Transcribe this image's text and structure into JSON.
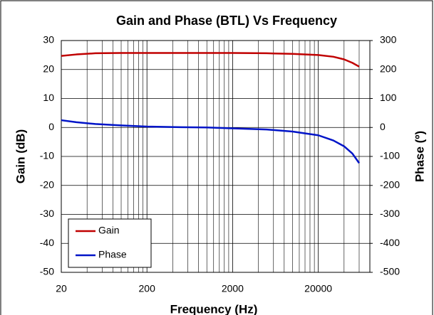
{
  "chart_data": {
    "type": "line",
    "title": "Gain and Phase (BTL) Vs Frequency",
    "x_label": "Frequency (Hz)",
    "y_label": "Gain (dB)",
    "y2_label": "Phase (º)",
    "x": [
      20,
      30,
      50,
      100,
      200,
      500,
      1000,
      2000,
      5000,
      10000,
      20000,
      30000,
      40000,
      50000,
      60000
    ],
    "series": [
      {
        "name": "Gain",
        "color": "#c00000",
        "values": [
          24.7,
          25.2,
          25.6,
          25.7,
          25.7,
          25.7,
          25.7,
          25.7,
          25.6,
          25.4,
          25.0,
          24.4,
          23.5,
          22.3,
          21.0
        ]
      },
      {
        "name": "Phase",
        "color": "#0014c8",
        "axis": "y2",
        "values": [
          25,
          18,
          12,
          7,
          3,
          1,
          0,
          -3,
          -7,
          -14,
          -27,
          -45,
          -65,
          -90,
          -123
        ]
      }
    ],
    "xlim": [
      20,
      80000
    ],
    "xlog": true,
    "xticks": [
      20,
      200,
      2000,
      20000
    ],
    "x_minor_gridlines": [
      40,
      60,
      80,
      100,
      120,
      140,
      160,
      180,
      400,
      600,
      800,
      1000,
      1200,
      1400,
      1600,
      1800,
      4000,
      6000,
      8000,
      10000,
      12000,
      14000,
      16000,
      18000,
      40000,
      60000
    ],
    "ylim": [
      -50,
      30
    ],
    "yticks": [
      -50,
      -40,
      -30,
      -20,
      -10,
      0,
      10,
      20,
      30
    ],
    "y2lim": [
      -500,
      300
    ],
    "y2ticks": [
      -500,
      -400,
      -300,
      -200,
      -100,
      0,
      100,
      200,
      300
    ],
    "grid": true,
    "legend": "lower left"
  }
}
